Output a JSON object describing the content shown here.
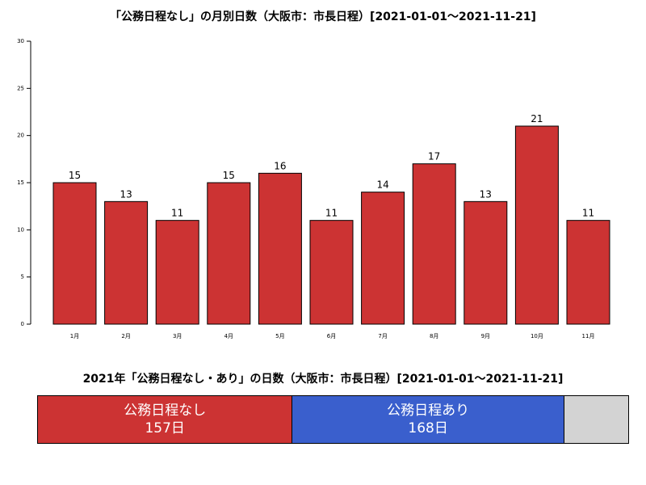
{
  "chart_data": [
    {
      "type": "bar",
      "title": "「公務日程なし」の月別日数（大阪市：市長日程）[2021-01-01〜2021-11-21]",
      "xlabel": "",
      "ylabel": "",
      "categories": [
        "1月",
        "2月",
        "3月",
        "4月",
        "5月",
        "6月",
        "7月",
        "8月",
        "9月",
        "10月",
        "11月"
      ],
      "values": [
        15,
        13,
        11,
        15,
        16,
        11,
        14,
        17,
        13,
        21,
        11
      ],
      "ylim": [
        0,
        30
      ],
      "yticks": [
        0,
        5,
        10,
        15,
        20,
        25,
        30
      ],
      "bar_color": "#cc3333",
      "grid": false
    },
    {
      "type": "bar",
      "orientation": "horizontal-stacked",
      "title": "2021年「公務日程なし・あり」の日数（大阪市：市長日程）[2021-01-01〜2021-11-21]",
      "total": 365,
      "segments": [
        {
          "label": "公務日程なし",
          "value": 157,
          "value_text": "157日",
          "color": "#cc3333"
        },
        {
          "label": "公務日程あり",
          "value": 168,
          "value_text": "168日",
          "color": "#3a5fcd"
        },
        {
          "label": "",
          "value": 40,
          "value_text": "",
          "color": "#d3d3d3"
        }
      ]
    }
  ]
}
